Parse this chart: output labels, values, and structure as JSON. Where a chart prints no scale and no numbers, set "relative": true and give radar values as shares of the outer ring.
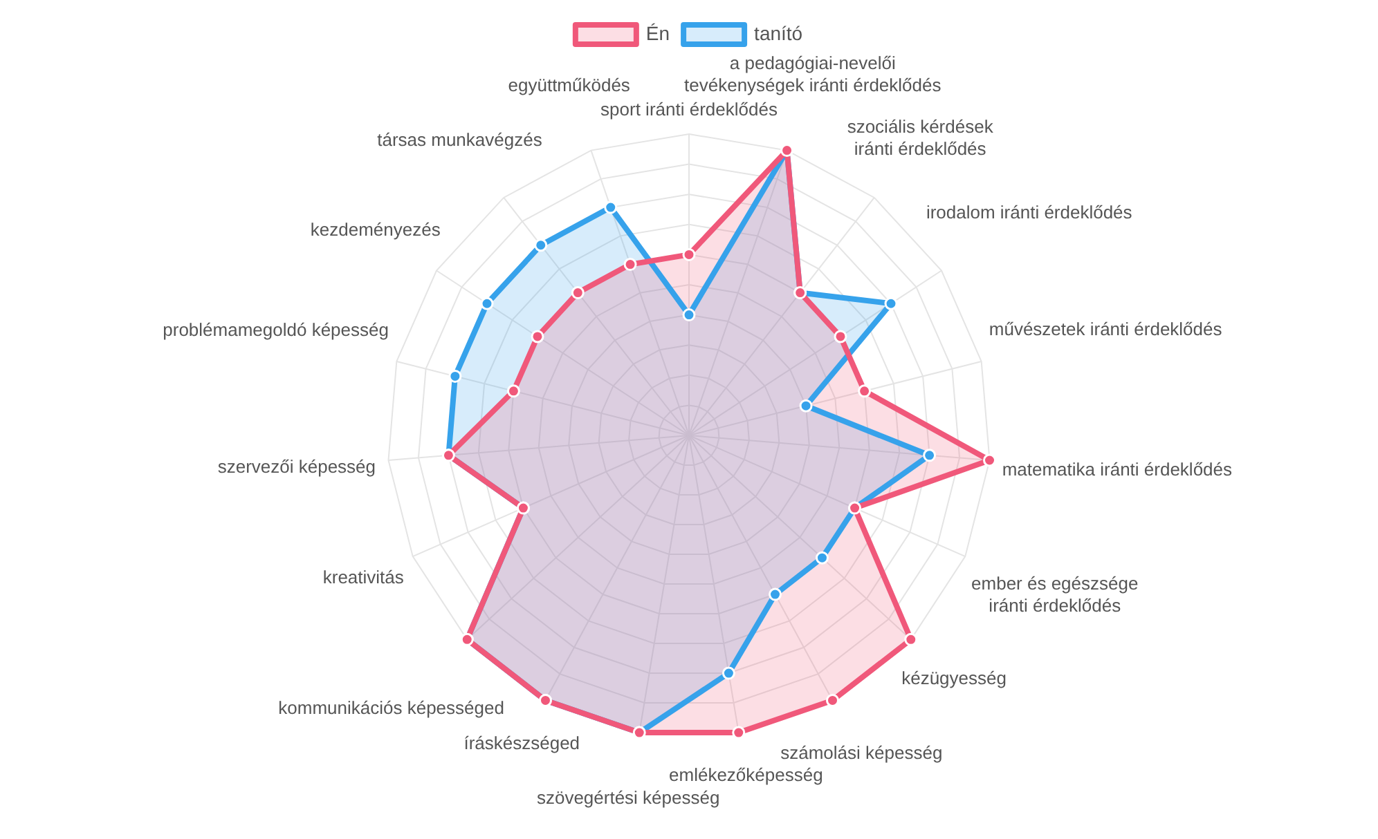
{
  "chart_data": {
    "type": "radar",
    "relative": true,
    "legend": "top",
    "grid": true,
    "marker": "circle",
    "categories": [
      "sport iránti érdeklődés",
      "a pedagógiai-nevelői tevékenységek iránti érdeklődés",
      "szociális kérdések iránti érdeklődés",
      "irodalom iránti érdeklődés",
      "művészetek iránti érdeklődés",
      "matematika iránti érdeklődés",
      "ember és egészsége iránti érdeklődés",
      "kézügyesség",
      "számolási képesség",
      "emlékezőképesség",
      "szövegértési képesség",
      "íráskészséged",
      "kommunikációs képességed",
      "kreativitás",
      "szervezői képesség",
      "problémamegoldó képesség",
      "kezdeményezés",
      "társas munkavégzés",
      "együttműködés"
    ],
    "series": [
      {
        "name": "Én",
        "color": "#f0587a",
        "values": [
          0.6,
          1,
          0.6,
          0.6,
          0.6,
          1,
          0.6,
          1,
          1,
          1,
          1,
          1,
          1,
          0.6,
          0.8,
          0.6,
          0.6,
          0.6,
          0.6
        ]
      },
      {
        "name": "tanító",
        "color": "#36a2eb",
        "values": [
          0.4,
          1,
          0.6,
          0.8,
          0.4,
          0.8,
          0.6,
          0.6,
          0.6,
          0.8,
          1,
          1,
          1,
          0.6,
          0.8,
          0.8,
          0.8,
          0.8,
          0.8
        ]
      }
    ]
  }
}
